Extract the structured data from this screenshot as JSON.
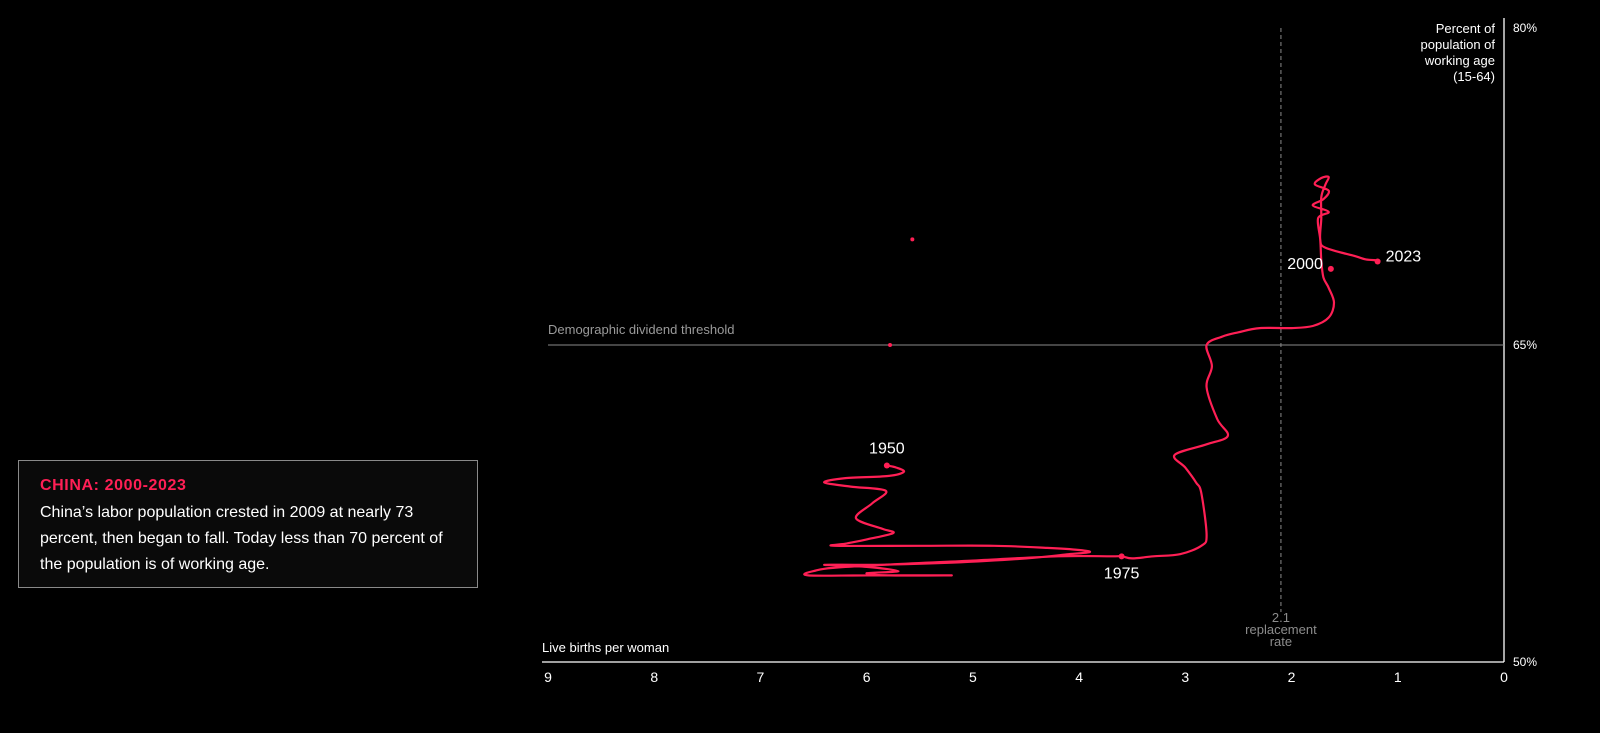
{
  "info": {
    "title": "CHINA: 2000-2023",
    "body": "China’s labor population crested in 2009 at nearly 73 percent, then began to fall. Today less than 70 percent of the population is of working age."
  },
  "chart_data": {
    "type": "line",
    "x_axis": {
      "label": "Live births per woman",
      "reversed": true,
      "range": [
        9,
        0
      ],
      "ticks": [
        "9",
        "8",
        "7",
        "6",
        "5",
        "4",
        "3",
        "2",
        "1",
        "0"
      ]
    },
    "y_axis": {
      "label_lines": [
        "Percent of",
        "population of",
        "working age",
        "(15-64)"
      ],
      "range": [
        50,
        80
      ],
      "ticks": [
        {
          "value": 80,
          "label": "80%"
        },
        {
          "value": 65,
          "label": "65%"
        },
        {
          "value": 50,
          "label": "50%"
        }
      ]
    },
    "threshold": {
      "value": 65,
      "label": "Demographic dividend threshold"
    },
    "replacement": {
      "value": 2.1,
      "label_lines": [
        "2.1",
        "replacement",
        "rate"
      ]
    },
    "colors": {
      "series": "#ff1f55",
      "axis": "#ffffff",
      "threshold": "#8a8a8a"
    },
    "series": [
      {
        "points": [
          [
            5.81,
            59.3
          ],
          [
            5.72,
            59.2
          ],
          [
            5.65,
            59.0
          ],
          [
            5.8,
            58.8
          ],
          [
            6.2,
            58.7
          ],
          [
            6.4,
            58.5
          ],
          [
            6.15,
            58.3
          ],
          [
            5.82,
            58.1
          ],
          [
            5.95,
            57.5
          ],
          [
            6.1,
            56.8
          ],
          [
            5.85,
            56.3
          ],
          [
            5.75,
            56.1
          ],
          [
            6.0,
            55.8
          ],
          [
            6.2,
            55.6
          ],
          [
            6.3,
            55.5
          ],
          [
            5.5,
            55.5
          ],
          [
            4.8,
            55.5
          ],
          [
            4.3,
            55.4
          ],
          [
            4.0,
            55.3
          ],
          [
            3.9,
            55.2
          ],
          [
            4.1,
            55.1
          ],
          [
            4.5,
            54.9
          ],
          [
            5.2,
            54.7
          ],
          [
            5.9,
            54.6
          ],
          [
            6.4,
            54.6
          ],
          [
            6.0,
            54.5
          ],
          [
            5.7,
            54.3
          ],
          [
            6.0,
            54.2
          ],
          [
            5.8,
            54.1
          ],
          [
            5.2,
            54.1
          ],
          [
            6.0,
            54.1
          ],
          [
            6.55,
            54.1
          ],
          [
            6.5,
            54.3
          ],
          [
            6.2,
            54.5
          ],
          [
            5.0,
            54.8
          ],
          [
            4.2,
            55.0
          ],
          [
            3.7,
            55.0
          ],
          [
            3.6,
            55.0
          ],
          [
            3.5,
            54.9
          ],
          [
            3.3,
            55.0
          ],
          [
            3.05,
            55.1
          ],
          [
            2.85,
            55.5
          ],
          [
            2.8,
            56.0
          ],
          [
            2.85,
            58.0
          ],
          [
            2.9,
            58.5
          ],
          [
            3.0,
            59.2
          ],
          [
            3.1,
            59.8
          ],
          [
            2.8,
            60.3
          ],
          [
            2.6,
            60.7
          ],
          [
            2.7,
            61.5
          ],
          [
            2.8,
            63.0
          ],
          [
            2.75,
            64.0
          ],
          [
            2.8,
            65.0
          ],
          [
            2.65,
            65.4
          ],
          [
            2.5,
            65.6
          ],
          [
            2.3,
            65.8
          ],
          [
            2.0,
            65.8
          ],
          [
            1.8,
            65.9
          ],
          [
            1.65,
            66.3
          ],
          [
            1.6,
            67.0
          ],
          [
            1.65,
            67.7
          ],
          [
            1.7,
            68.2
          ],
          [
            1.72,
            69.0
          ],
          [
            1.73,
            70.0
          ],
          [
            1.75,
            71.0
          ],
          [
            1.65,
            71.3
          ],
          [
            1.8,
            71.6
          ],
          [
            1.7,
            71.9
          ],
          [
            1.65,
            72.3
          ],
          [
            1.78,
            72.6
          ],
          [
            1.72,
            72.9
          ],
          [
            1.65,
            72.95
          ],
          [
            1.68,
            72.6
          ],
          [
            1.72,
            72.0
          ],
          [
            1.72,
            71.0
          ],
          [
            1.73,
            70.0
          ],
          [
            1.68,
            69.6
          ],
          [
            1.4,
            69.2
          ],
          [
            1.3,
            69.05
          ],
          [
            1.18,
            69.0
          ],
          [
            1.19,
            68.95
          ]
        ]
      }
    ],
    "labeled_points": [
      {
        "label": "1950",
        "x": 5.81,
        "y": 59.3
      },
      {
        "label": "1975",
        "x": 3.6,
        "y": 55.0
      },
      {
        "label": "2000",
        "x": 1.63,
        "y": 68.6
      },
      {
        "label": "2023",
        "x": 1.19,
        "y": 68.95
      }
    ],
    "extra_points": [
      {
        "x": 5.57,
        "y": 70.0
      },
      {
        "x": 5.78,
        "y": 65.0
      }
    ]
  }
}
